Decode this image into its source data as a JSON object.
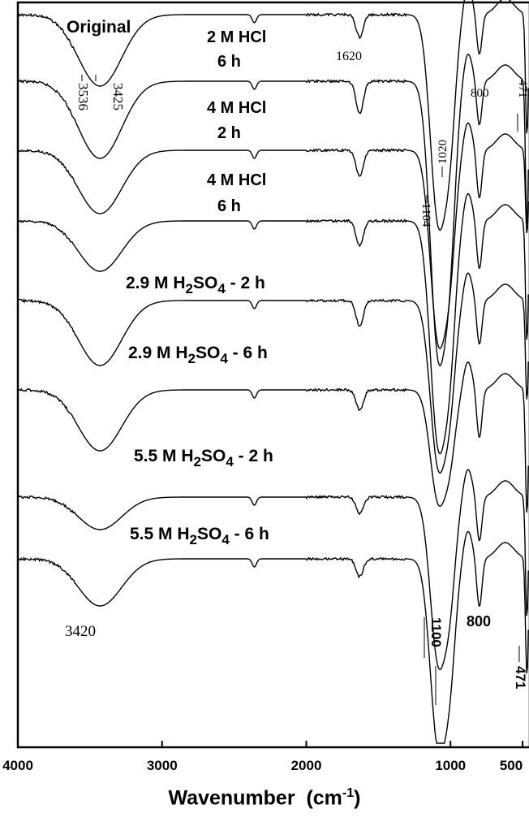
{
  "chart_data": {
    "type": "line",
    "title": "",
    "xlabel": "Wavenumber",
    "xlabel_unit_base": "cm",
    "xlabel_unit_exp": "-1",
    "ylabel": "",
    "xlim": [
      4000,
      450
    ],
    "x_ticks": [
      "4000",
      "3000",
      "2000",
      "1000",
      "500"
    ],
    "grid": false,
    "series": [
      {
        "name": "Original",
        "minima": [
          3536,
          3425,
          1620,
          1104,
          1020,
          800,
          471
        ]
      },
      {
        "name": "2 M HCl 6 h",
        "minima": [
          3425,
          1620,
          1100,
          800,
          471
        ]
      },
      {
        "name": "4 M HCl 2 h",
        "minima": [
          3425,
          1620,
          1100,
          800,
          471
        ]
      },
      {
        "name": "4 M HCl 6 h",
        "minima": [
          3425,
          1620,
          1100,
          800,
          471
        ]
      },
      {
        "name": "2.9 M H2SO4 - 2 h",
        "minima": [
          3420,
          1620,
          1100,
          800,
          471
        ]
      },
      {
        "name": "2.9 M H2SO4 - 6 h",
        "minima": [
          3420,
          1620,
          1100,
          800,
          471
        ]
      },
      {
        "name": "5.5 M H2SO4 - 2 h",
        "minima": [
          3420,
          1620,
          1100,
          800,
          471
        ]
      },
      {
        "name": "5.5 M H2SO4 - 6 h",
        "minima": [
          3420,
          1620,
          1100,
          800,
          471
        ]
      }
    ],
    "annotations": [
      "3536",
      "3425",
      "1620",
      "1104",
      "1020",
      "800",
      "471",
      "3420",
      "1100",
      "800",
      "471"
    ]
  },
  "labels": {
    "original": "Original",
    "hcl_2m_a": "2 M HCl",
    "hcl_2m_b": "6 h",
    "hcl_4m2_a": "4 M HCl",
    "hcl_4m2_b": "2 h",
    "hcl_4m6_a": "4 M HCl",
    "hcl_4m6_b": "6 h",
    "h2so4_29_2": {
      "pre": "2.9 M H",
      "sub1": "2",
      "mid": "SO",
      "sub2": "4",
      "post": " - 2 h"
    },
    "h2so4_29_6": {
      "pre": "2.9 M H",
      "sub1": "2",
      "mid": "SO",
      "sub2": "4",
      "post": " - 6 h"
    },
    "h2so4_55_2": {
      "pre": "5.5 M H",
      "sub1": "2",
      "mid": "SO",
      "sub2": "4",
      "post": " - 2 h"
    },
    "h2so4_55_6": {
      "pre": "5.5 M H",
      "sub1": "2",
      "mid": "SO",
      "sub2": "4",
      "post": " - 6 h"
    },
    "peak_3536": "3536",
    "peak_3425": "3425",
    "peak_1620": "1620",
    "peak_1104": "1104",
    "peak_1020": "1020",
    "peak_800_top": "800",
    "peak_471_top": "471",
    "peak_3420": "3420",
    "peak_1100": "1100",
    "peak_800_bot": "800",
    "peak_471_bot": "471"
  },
  "colors": {
    "line": "#000000",
    "background": "#ffffff"
  }
}
